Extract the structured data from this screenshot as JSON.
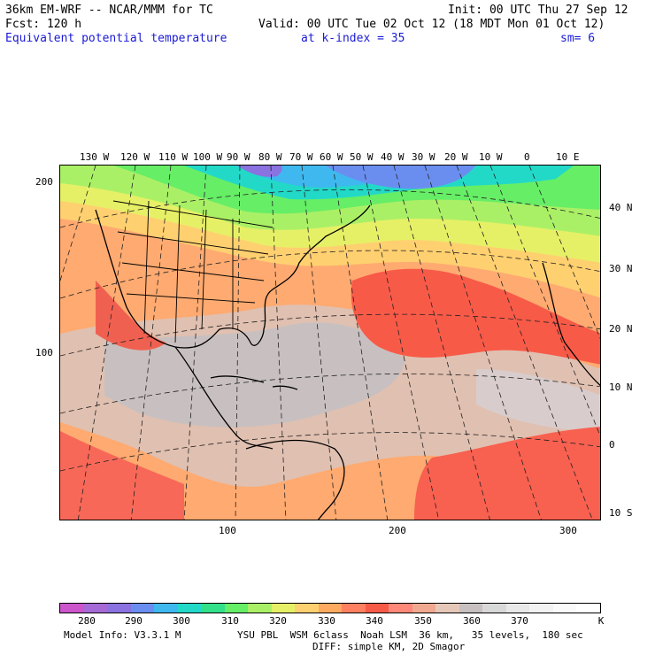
{
  "header": {
    "model": "36km EM-WRF -- NCAR/MMM for TC",
    "init": "Init: 00 UTC Thu 27 Sep 12",
    "fcst": "Fcst: 120 h",
    "valid": "Valid: 00 UTC Tue 02 Oct 12 (18 MDT Mon 01 Oct 12)",
    "field": "Equivalent potential temperature",
    "level": "at k-index = 35",
    "smooth": "sm= 6"
  },
  "map": {
    "lon_labels": [
      "130 W",
      "120 W",
      "110 W",
      "100 W",
      "90 W",
      "80 W",
      "70 W",
      "60 W",
      "50 W",
      "40 W",
      "30 W",
      "20 W",
      "10 W",
      "0",
      "10 E"
    ],
    "lat_labels": [
      "40 N",
      "30 N",
      "20 N",
      "10 N",
      "0",
      "10 S"
    ],
    "left_ticks": [
      "200",
      "100"
    ],
    "bottom_ticks": [
      "100",
      "200",
      "300"
    ]
  },
  "colorbar": {
    "colors": [
      "#cc55cc",
      "#a66ad6",
      "#8a72e0",
      "#6a8ef0",
      "#3fb8f0",
      "#22d9c8",
      "#33e08a",
      "#66ee66",
      "#aaf066",
      "#e6f066",
      "#ffd070",
      "#ffaa60",
      "#ff8060",
      "#f85a48",
      "#ff8878",
      "#f0a890",
      "#e6c8b8",
      "#c8c0c0",
      "#d8d8d8",
      "#e8e8e8",
      "#f2f2f2",
      "#fafafa",
      "#ffffff"
    ],
    "labels": [
      "280",
      "290",
      "300",
      "310",
      "320",
      "330",
      "340",
      "350",
      "360",
      "370"
    ],
    "units": "K"
  },
  "footer": {
    "model_info": "Model Info: V3.3.1 M",
    "physics_1": "YSU PBL  WSM 6class  Noah LSM  36 km,   35 levels,  180 sec",
    "physics_2": "DIFF: simple KM, 2D Smagor"
  }
}
